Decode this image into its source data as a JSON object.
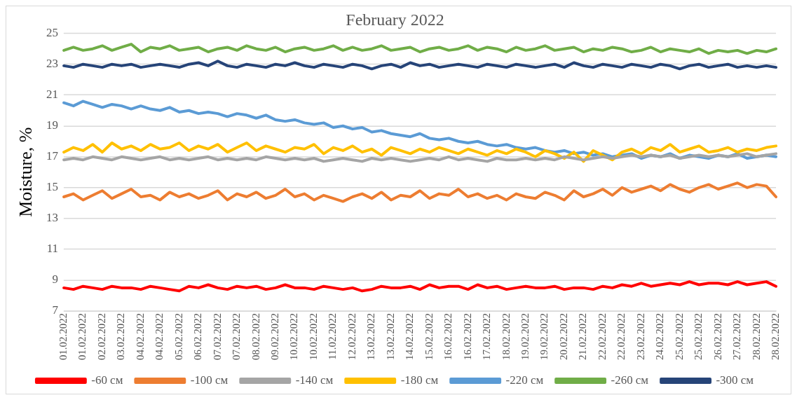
{
  "chart_data": {
    "type": "line",
    "title": "February 2022",
    "ylabel": "Moisture, %",
    "categories": [
      "01.02.2022",
      null,
      "01.02.2022",
      null,
      "02.02.2022",
      null,
      "03.02.2022",
      null,
      "04.02.2022",
      null,
      "04.02.2022",
      null,
      "05.02.2022",
      null,
      "06.02.2022",
      null,
      "07.02.2022",
      null,
      "07.02.2022",
      null,
      "08.02.2022",
      null,
      "09.02.2022",
      null,
      "10.02.2022",
      null,
      "10.02.2022",
      null,
      "11.02.2022",
      null,
      "12.02.2022",
      null,
      "13.02.2022",
      null,
      "13.02.2022",
      null,
      "14.02.2022",
      null,
      "15.02.2022",
      null,
      "16.02.2022",
      null,
      "16.02.2022",
      null,
      "17.02.2022",
      null,
      "18.02.2022",
      null,
      "19.02.2022",
      null,
      "19.02.2022",
      null,
      "20.02.2022",
      null,
      "21.02.2022",
      null,
      "22.02.2022",
      null,
      "22.02.2022",
      null,
      "23.02.2022",
      null,
      "24.02.2022",
      null,
      "25.02.2022",
      null,
      "25.02.2022",
      null,
      "26.02.2022",
      null,
      "27.02.2022",
      null,
      "28.02.2022",
      null,
      "28.02.2022"
    ],
    "series": [
      {
        "name": "-60 см",
        "color": "#ff0000",
        "values": [
          8.5,
          8.4,
          8.6,
          8.5,
          8.4,
          8.6,
          8.5,
          8.5,
          8.4,
          8.6,
          8.5,
          8.4,
          8.3,
          8.6,
          8.5,
          8.7,
          8.5,
          8.4,
          8.6,
          8.5,
          8.6,
          8.4,
          8.5,
          8.7,
          8.5,
          8.5,
          8.4,
          8.6,
          8.5,
          8.4,
          8.5,
          8.3,
          8.4,
          8.6,
          8.5,
          8.5,
          8.6,
          8.4,
          8.7,
          8.5,
          8.6,
          8.6,
          8.4,
          8.7,
          8.5,
          8.6,
          8.4,
          8.5,
          8.6,
          8.5,
          8.5,
          8.6,
          8.4,
          8.5,
          8.5,
          8.4,
          8.6,
          8.5,
          8.7,
          8.6,
          8.8,
          8.6,
          8.7,
          8.8,
          8.7,
          8.9,
          8.7,
          8.8,
          8.8,
          8.7,
          8.9,
          8.7,
          8.8,
          8.9,
          8.6
        ]
      },
      {
        "name": "-100 см",
        "color": "#ed7d31",
        "values": [
          14.4,
          14.6,
          14.2,
          14.5,
          14.8,
          14.3,
          14.6,
          14.9,
          14.4,
          14.5,
          14.2,
          14.7,
          14.4,
          14.6,
          14.3,
          14.5,
          14.8,
          14.2,
          14.6,
          14.4,
          14.7,
          14.3,
          14.5,
          14.9,
          14.4,
          14.6,
          14.2,
          14.5,
          14.3,
          14.1,
          14.4,
          14.6,
          14.3,
          14.7,
          14.2,
          14.5,
          14.4,
          14.8,
          14.3,
          14.6,
          14.5,
          14.9,
          14.4,
          14.6,
          14.3,
          14.5,
          14.2,
          14.6,
          14.4,
          14.3,
          14.7,
          14.5,
          14.2,
          14.8,
          14.4,
          14.6,
          14.9,
          14.5,
          15.0,
          14.7,
          14.9,
          15.1,
          14.8,
          15.2,
          14.9,
          14.7,
          15.0,
          15.2,
          14.9,
          15.1,
          15.3,
          15.0,
          15.2,
          15.1,
          14.4
        ]
      },
      {
        "name": "-140 см",
        "color": "#a5a5a5",
        "values": [
          16.8,
          16.9,
          16.8,
          17.0,
          16.9,
          16.8,
          17.0,
          16.9,
          16.8,
          16.9,
          17.0,
          16.8,
          16.9,
          16.8,
          16.9,
          17.0,
          16.8,
          16.9,
          16.8,
          16.9,
          16.8,
          17.0,
          16.9,
          16.8,
          16.9,
          16.8,
          16.9,
          16.7,
          16.8,
          16.9,
          16.8,
          16.7,
          16.9,
          16.8,
          16.9,
          16.8,
          16.7,
          16.8,
          16.9,
          16.8,
          17.0,
          16.8,
          16.9,
          16.8,
          16.7,
          16.9,
          16.8,
          16.8,
          16.9,
          16.8,
          16.9,
          16.8,
          17.0,
          16.9,
          16.8,
          16.9,
          17.0,
          16.9,
          17.0,
          17.1,
          17.0,
          17.1,
          17.0,
          17.1,
          16.9,
          17.0,
          17.1,
          17.0,
          17.1,
          17.0,
          17.1,
          17.2,
          17.0,
          17.1,
          17.2
        ]
      },
      {
        "name": "-180 см",
        "color": "#ffc000",
        "values": [
          17.3,
          17.6,
          17.4,
          17.8,
          17.3,
          17.9,
          17.5,
          17.7,
          17.4,
          17.8,
          17.5,
          17.6,
          17.9,
          17.4,
          17.7,
          17.5,
          17.8,
          17.3,
          17.6,
          17.9,
          17.4,
          17.7,
          17.5,
          17.3,
          17.6,
          17.5,
          17.8,
          17.2,
          17.6,
          17.4,
          17.7,
          17.3,
          17.5,
          17.1,
          17.6,
          17.4,
          17.2,
          17.5,
          17.3,
          17.6,
          17.4,
          17.2,
          17.5,
          17.3,
          17.1,
          17.4,
          17.2,
          17.5,
          17.3,
          17.0,
          17.4,
          17.2,
          16.9,
          17.3,
          16.7,
          17.4,
          17.1,
          16.8,
          17.3,
          17.5,
          17.2,
          17.6,
          17.4,
          17.8,
          17.3,
          17.5,
          17.7,
          17.3,
          17.4,
          17.6,
          17.3,
          17.5,
          17.4,
          17.6,
          17.7
        ]
      },
      {
        "name": "-220 см",
        "color": "#5b9bd5",
        "values": [
          20.5,
          20.3,
          20.6,
          20.4,
          20.2,
          20.4,
          20.3,
          20.1,
          20.3,
          20.1,
          20.0,
          20.2,
          19.9,
          20.0,
          19.8,
          19.9,
          19.8,
          19.6,
          19.8,
          19.7,
          19.5,
          19.7,
          19.4,
          19.3,
          19.4,
          19.2,
          19.1,
          19.2,
          18.9,
          19.0,
          18.8,
          18.9,
          18.6,
          18.7,
          18.5,
          18.4,
          18.3,
          18.5,
          18.2,
          18.1,
          18.2,
          18.0,
          17.9,
          18.0,
          17.8,
          17.7,
          17.8,
          17.6,
          17.5,
          17.6,
          17.4,
          17.3,
          17.4,
          17.2,
          17.3,
          17.1,
          17.2,
          17.0,
          17.1,
          17.2,
          16.9,
          17.1,
          17.0,
          17.2,
          16.9,
          17.1,
          17.0,
          16.9,
          17.1,
          17.0,
          17.2,
          16.9,
          17.0,
          17.1,
          17.0
        ]
      },
      {
        "name": "-260 см",
        "color": "#70ad47",
        "values": [
          23.9,
          24.1,
          23.9,
          24.0,
          24.2,
          23.9,
          24.1,
          24.3,
          23.8,
          24.1,
          24.0,
          24.2,
          23.9,
          24.0,
          24.1,
          23.8,
          24.0,
          24.1,
          23.9,
          24.2,
          24.0,
          23.9,
          24.1,
          23.8,
          24.0,
          24.1,
          23.9,
          24.0,
          24.2,
          23.9,
          24.1,
          23.9,
          24.0,
          24.2,
          23.9,
          24.0,
          24.1,
          23.8,
          24.0,
          24.1,
          23.9,
          24.0,
          24.2,
          23.9,
          24.1,
          24.0,
          23.8,
          24.1,
          23.9,
          24.0,
          24.2,
          23.9,
          24.0,
          24.1,
          23.8,
          24.0,
          23.9,
          24.1,
          24.0,
          23.8,
          23.9,
          24.1,
          23.8,
          24.0,
          23.9,
          23.8,
          24.0,
          23.7,
          23.9,
          23.8,
          23.9,
          23.7,
          23.9,
          23.8,
          24.0
        ]
      },
      {
        "name": "-300 см",
        "color": "#264478",
        "values": [
          22.9,
          22.8,
          23.0,
          22.9,
          22.8,
          23.0,
          22.9,
          23.0,
          22.8,
          22.9,
          23.0,
          22.9,
          22.8,
          23.0,
          23.1,
          22.9,
          23.2,
          22.9,
          22.8,
          23.0,
          22.9,
          22.8,
          23.0,
          22.9,
          23.1,
          22.9,
          22.8,
          23.0,
          22.9,
          22.8,
          23.0,
          22.9,
          22.7,
          22.9,
          23.0,
          22.8,
          23.1,
          22.9,
          23.0,
          22.8,
          22.9,
          23.0,
          22.9,
          22.8,
          23.0,
          22.9,
          22.8,
          23.0,
          22.9,
          22.8,
          22.9,
          23.0,
          22.8,
          23.1,
          22.9,
          22.8,
          23.0,
          22.9,
          22.8,
          23.0,
          22.9,
          22.8,
          23.0,
          22.9,
          22.7,
          22.9,
          23.0,
          22.8,
          22.9,
          23.0,
          22.8,
          22.9,
          22.8,
          22.9,
          22.8
        ]
      }
    ],
    "ylim": [
      7,
      25
    ],
    "yticks": [
      7,
      9,
      11,
      13,
      15,
      17,
      19,
      21,
      23,
      25
    ],
    "grid": "y",
    "legend": "bottom",
    "marker": "none",
    "line_style": "solid"
  }
}
